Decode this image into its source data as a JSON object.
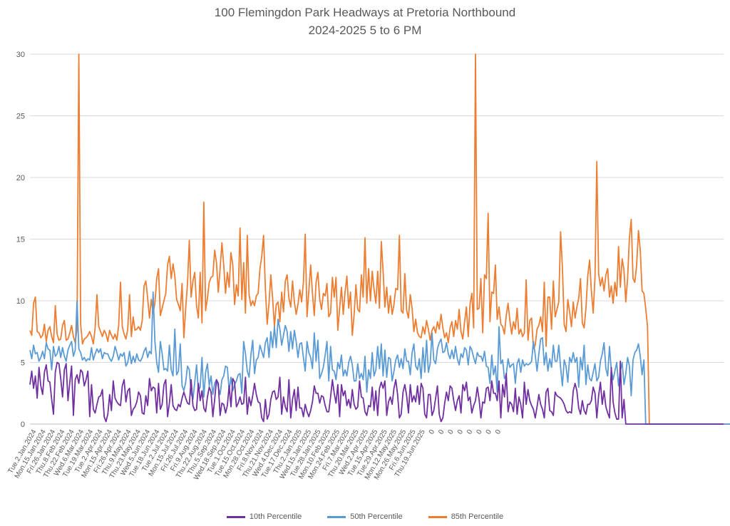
{
  "chart_data": {
    "type": "line",
    "title": "100 Flemingdon Park Headways at Pretoria Northbound",
    "subtitle": "2024-2025 5 to 6 PM",
    "xlabel": "",
    "ylabel": "",
    "ylim": [
      0,
      30
    ],
    "yticks": [
      0,
      5,
      10,
      15,
      20,
      25,
      30
    ],
    "grid": true,
    "legend_position": "bottom",
    "x_tick_labels": [
      "Tue.2.Jan.2024",
      "Mon.15.Jan.2024",
      "Fri.26.Jan.2024",
      "Thu.8.Feb.2024",
      "Thu.22.Feb.2024",
      "Wed.6.Mar.2024",
      "Tue.19.Mar.2024",
      "Tue.2.Apr.2024",
      "Mon.15.Apr.2024",
      "Fri.26.Apr.2024",
      "Thu.9.May.2024",
      "Thu.23.May.2024",
      "Wed.5.Jun.2024",
      "Tue.18.Jun.2024",
      "Tue.2.Jul.2024",
      "Mon.15.Jul.2024",
      "Fri.26.Jul.2024",
      "Fri.9.Aug.2024",
      "Thu.22.Aug.2024",
      "Thu.5.Sep.2024",
      "Wed.18.Sep.2024",
      "Tue.1.Oct.2024",
      "Tue.15.Oct.2024",
      "Mon.28.Oct.2024",
      "Fri.8.Nov.2024",
      "Thu.21.Nov.2024",
      "Wed.4.Dec.2024",
      "Tue.17.Dec.2024",
      "Thu.2.Jan.2025",
      "Wed.15.Jan.2025",
      "Tue.28.Jan.2025",
      "Mon.10.Feb.2025",
      "Mon.24.Feb.2025",
      "Fri.7.Mar.2025",
      "Thu.20.Mar.2025",
      "Wed.2.Apr.2025",
      "Tue.15.Apr.2025",
      "Tue.29.Apr.2025",
      "Mon.12.May.2025",
      "Mon.26.May.2025",
      "Fri.6.Jun.2025",
      "Thu.19.Jun.2025",
      "0",
      "0",
      "0",
      "0",
      "0",
      "0",
      "0",
      "0"
    ],
    "series": [
      {
        "name": "10th Percentile",
        "color": "#7030a0",
        "values": [
          3.2,
          4.3,
          2.9,
          3.9,
          2.1,
          4.6,
          3.1,
          2.4,
          4.2,
          4.8,
          3.5,
          3.4,
          2.0,
          0.8,
          4.2,
          5.0,
          4.9,
          3.7,
          2.2,
          4.4,
          4.9,
          1.9,
          3.4,
          4.7,
          0.7,
          3.6,
          4.0,
          3.3,
          4.4,
          4.2,
          3.1,
          3.6,
          4.3,
          0.6,
          3.2,
          1.2,
          0.9,
          1.6,
          2.2,
          2.3,
          2.8,
          0.6,
          0.2,
          0.8,
          2.4,
          1.1,
          3.5,
          2.1,
          1.8,
          1.6,
          1.5,
          3.1,
          3.6,
          1.8,
          2.7,
          2.9,
          0.7,
          1.2,
          1.4,
          1.8,
          2.6,
          2.3,
          0.9,
          0.8,
          2.3,
          1.5,
          3.7,
          2.7,
          3.0,
          2.9,
          0.9,
          3.3,
          1.2,
          1.6,
          3.2,
          3.6,
          0.6,
          1.7,
          3.2,
          1.5,
          1.2,
          1.1,
          1.6,
          1.4,
          2.1,
          2.6,
          2.1,
          1.7,
          1.6,
          3.6,
          1.5,
          1.1,
          1.2,
          3.3,
          1.9,
          2.7,
          1.3,
          1.0,
          2.2,
          3.0,
          2.6,
          0.6,
          2.0,
          3.6,
          3.3,
          0.7,
          1.7,
          1.6,
          0.9,
          1.5,
          3.1,
          1.4,
          3.7,
          3.4,
          1.4,
          1.7,
          2.2,
          1.6,
          1.7,
          3.8,
          0.8,
          2.2,
          1.5,
          2.3,
          3.3,
          2.4,
          1.8,
          1.7,
          0.5,
          0.2,
          2.0,
          0.4,
          0.8,
          2.0,
          2.6,
          2.7,
          2.0,
          2.2,
          3.8,
          0.8,
          2.2,
          1.4,
          1.0,
          3.6,
          0.5,
          2.0,
          2.8,
          1.1,
          3.0,
          1.3,
          1.3,
          0.6,
          1.6,
          1.0,
          0.6,
          1.1,
          1.8,
          3.1,
          2.5,
          2.5,
          1.7,
          2.3,
          2.2,
          1.5,
          1.0,
          1.0,
          2.2,
          3.6,
          2.5,
          1.7,
          3.2,
          0.6,
          3.2,
          2.3,
          2.7,
          1.5,
          2.0,
          1.3,
          2.8,
          1.6,
          1.2,
          1.4,
          3.5,
          2.2,
          2.1,
          1.0,
          0.7,
          1.5,
          1.4,
          3.0,
          1.1,
          2.7,
          0.7,
          2.9,
          3.4,
          2.9,
          3.5,
          0.7,
          1.8,
          2.2,
          1.6,
          2.9,
          3.6,
          2.4,
          0.5,
          0.8,
          2.6,
          3.2,
          2.3,
          0.9,
          3.2,
          1.8,
          2.3,
          1.8,
          3.1,
          1.6,
          3.3,
          2.9,
          0.8,
          0.5,
          2.4,
          2.4,
          0.7,
          1.1,
          2.1,
          3.1,
          0.8,
          0.2,
          0.5,
          1.7,
          2.6,
          1.9,
          3.1,
          2.9,
          1.9,
          1.1,
          1.9,
          2.3,
          0.9,
          3.2,
          2.7,
          3.4,
          1.9,
          2.2,
          0.9,
          1.5,
          1.9,
          3.0,
          2.0,
          0.5,
          1.8,
          1.7,
          2.9,
          3.0,
          1.9,
          3.5,
          2.5,
          2.5,
          1.9,
          3.5,
          0.5,
          3.2,
          2.2,
          4.1,
          1.0,
          1.8,
          1.6,
          1.0,
          2.9,
          0.8,
          2.2,
          1.6,
          0.5,
          3.4,
          1.6,
          2.8,
          1.9,
          1.5,
          1.2,
          0.5,
          1.4,
          2.4,
          1.6,
          1.2,
          0.5,
          2.6,
          2.9,
          1.1,
          1.0,
          0.7,
          2.6,
          2.3,
          2.2,
          2.1,
          1.9,
          1.6,
          1.1,
          0.9,
          1.0,
          0.9,
          2.7,
          3.3,
          2.7,
          1.3,
          0.8,
          1.9,
          1.1,
          0.8,
          1.6,
          1.6,
          1.9,
          3.0,
          2.5,
          0.5,
          2.3,
          3.4,
          1.6,
          2.7,
          1.4,
          0.9,
          0.5,
          4.6,
          1.8,
          0.9,
          0.4,
          0.4,
          5.1,
          0.5,
          2.0,
          0,
          0,
          0,
          0,
          0,
          0,
          0,
          0,
          0,
          0,
          0,
          0,
          0,
          0,
          0,
          0,
          0,
          0,
          0,
          0,
          0,
          0,
          0,
          0,
          0,
          0,
          0,
          0,
          0,
          0,
          0,
          0,
          0,
          0,
          0,
          0,
          0,
          0,
          0,
          0,
          0,
          0,
          0,
          0,
          0,
          0,
          0,
          0,
          0,
          0,
          0,
          0,
          0,
          0,
          0
        ]
      },
      {
        "name": "50th Percentile",
        "color": "#5b9bd5",
        "values": [
          6.0,
          5.3,
          6.4,
          5.7,
          5.8,
          5.1,
          5.4,
          5.9,
          5.3,
          6.6,
          6.1,
          6.0,
          4.4,
          6.3,
          5.5,
          5.7,
          6.3,
          5.4,
          6.2,
          5.5,
          5.1,
          6.0,
          6.4,
          6.7,
          5.5,
          6.0,
          10.0,
          6.1,
          5.8,
          5.2,
          5.4,
          5.1,
          5.3,
          5.2,
          6.2,
          5.2,
          5.7,
          6.1,
          5.8,
          6.1,
          5.3,
          5.8,
          5.7,
          5.7,
          5.3,
          5.1,
          5.5,
          6.3,
          5.8,
          5.2,
          5.7,
          5.5,
          5.8,
          4.7,
          5.0,
          5.9,
          4.9,
          5.5,
          5.0,
          5.7,
          5.2,
          5.1,
          5.4,
          5.9,
          6.2,
          5.4,
          5.9,
          5.7,
          10.7,
          6.7,
          5.0,
          4.2,
          6.7,
          5.7,
          4.4,
          4.5,
          4.3,
          6.4,
          4.4,
          3.9,
          7.7,
          4.0,
          4.3,
          6.5,
          3.1,
          2.7,
          3.4,
          4.7,
          4.4,
          2.5,
          2.0,
          3.4,
          4.8,
          2.7,
          3.0,
          5.4,
          2.2,
          4.2,
          4.9,
          3.1,
          3.9,
          2.4,
          3.3,
          3.6,
          3.0,
          2.4,
          3.6,
          3.9,
          4.7,
          4.6,
          2.7,
          3.8,
          2.7,
          3.2,
          3.5,
          4.0,
          4.1,
          2.5,
          6.7,
          5.7,
          4.3,
          3.8,
          5.6,
          6.8,
          4.1,
          5.2,
          5.4,
          6.4,
          5.9,
          5.4,
          6.6,
          7.0,
          5.4,
          7.5,
          6.2,
          7.9,
          6.2,
          8.5,
          7.7,
          6.4,
          7.2,
          8.0,
          7.5,
          5.9,
          7.5,
          6.1,
          7.6,
          6.7,
          5.4,
          6.5,
          6.6,
          5.4,
          4.3,
          6.7,
          5.8,
          5.4,
          4.5,
          7.4,
          5.1,
          6.8,
          3.7,
          4.1,
          4.6,
          5.6,
          6.7,
          3.5,
          6.3,
          4.4,
          4.3,
          3.6,
          5.0,
          4.5,
          5.6,
          3.9,
          4.4,
          3.9,
          5.0,
          5.5,
          4.8,
          3.5,
          3.5,
          4.9,
          3.7,
          4.1,
          3.6,
          5.5,
          2.6,
          4.4,
          3.7,
          5.8,
          3.9,
          4.4,
          6.3,
          4.5,
          6.5,
          3.9,
          6.0,
          3.8,
          5.4,
          5.3,
          3.5,
          4.3,
          5.2,
          5.6,
          4.6,
          5.3,
          4.5,
          6.1,
          5.1,
          5.1,
          4.0,
          5.8,
          6.5,
          4.7,
          4.4,
          5.3,
          3.7,
          6.2,
          4.2,
          6.8,
          4.2,
          4.9,
          7.4,
          5.2,
          4.9,
          6.1,
          6.6,
          6.9,
          5.8,
          5.9,
          6.6,
          5.7,
          5.3,
          6.0,
          5.3,
          6.3,
          5.3,
          4.8,
          5.7,
          5.4,
          6.2,
          6.0,
          4.8,
          6.3,
          6.0,
          5.4,
          4.9,
          5.8,
          5.5,
          5.5,
          5.1,
          5.9,
          4.7,
          4.6,
          3.3,
          5.6,
          4.0,
          4.7,
          2.6,
          7.9,
          4.9,
          5.2,
          3.7,
          4.0,
          5.3,
          4.6,
          4.8,
          4.9,
          3.3,
          4.9,
          5.3,
          4.2,
          5.2,
          4.7,
          4.9,
          4.8,
          4.9,
          5.1,
          6.7,
          5.6,
          4.3,
          5.7,
          6.9,
          7.0,
          4.8,
          5.8,
          4.3,
          5.3,
          4.6,
          6.4,
          5.1,
          5.1,
          6.4,
          4.6,
          3.1,
          5.2,
          4.7,
          3.4,
          5.4,
          5.0,
          5.8,
          5.0,
          5.4,
          3.0,
          5.4,
          4.4,
          6.4,
          3.2,
          4.8,
          3.7,
          3.5,
          4.2,
          4.9,
          3.5,
          3.8,
          5.1,
          5.7,
          6.6,
          4.5,
          3.9,
          6.3,
          4.4,
          3.6,
          4.3,
          5.0,
          3.1,
          4.3,
          5.0,
          3.2,
          4.1,
          5.4,
          4.7,
          2.3,
          5.2,
          5.8,
          6.0,
          6.5,
          5.5,
          4.0,
          5.2,
          0,
          0,
          0,
          0,
          0,
          0,
          0,
          0,
          0,
          0,
          0,
          0,
          0,
          0,
          0,
          0,
          0,
          0,
          0,
          0,
          0,
          0,
          0,
          0,
          0,
          0,
          0,
          0,
          0,
          0,
          0,
          0,
          0,
          0,
          0,
          0,
          0,
          0,
          0,
          0,
          0,
          0,
          0,
          0,
          0,
          0,
          0,
          0,
          0,
          0,
          0,
          0,
          0,
          0,
          0,
          0
        ]
      },
      {
        "name": "85th Percentile",
        "color": "#ed7d31",
        "values": [
          7.6,
          7.2,
          9.8,
          10.3,
          7.5,
          7.4,
          7.0,
          7.2,
          8.1,
          6.7,
          7.6,
          7.9,
          7.1,
          6.6,
          9.6,
          7.3,
          6.8,
          6.9,
          8.0,
          8.4,
          6.8,
          6.9,
          7.4,
          8.0,
          7.1,
          6.6,
          7.7,
          30.0,
          8.1,
          6.5,
          6.9,
          7.0,
          7.2,
          7.5,
          7.1,
          6.5,
          7.8,
          10.5,
          7.9,
          7.5,
          7.1,
          7.6,
          7.3,
          6.7,
          7.6,
          7.2,
          6.9,
          7.3,
          6.8,
          8.0,
          11.5,
          7.9,
          7.3,
          6.9,
          7.7,
          10.5,
          7.1,
          8.7,
          7.6,
          7.7,
          7.9,
          7.6,
          8.4,
          11.2,
          11.6,
          10.2,
          8.6,
          10.1,
          9.0,
          9.8,
          11.8,
          12.6,
          8.8,
          9.4,
          10.0,
          10.6,
          12.9,
          13.6,
          11.8,
          13.0,
          12.0,
          10.1,
          9.7,
          9.2,
          11.4,
          7.0,
          9.4,
          11.4,
          14.9,
          10.3,
          11.6,
          12.3,
          9.6,
          8.6,
          12.3,
          8.2,
          18.0,
          9.2,
          10.2,
          11.5,
          11.9,
          12.0,
          14.1,
          13.1,
          10.7,
          12.6,
          14.7,
          12.9,
          10.6,
          12.3,
          11.1,
          13.9,
          12.9,
          9.7,
          11.3,
          10.4,
          15.9,
          10.1,
          13.1,
          9.0,
          15.3,
          10.5,
          9.6,
          10.0,
          9.6,
          10.4,
          10.6,
          12.6,
          13.6,
          15.3,
          11.0,
          8.1,
          9.8,
          12.1,
          10.2,
          7.9,
          9.7,
          9.9,
          8.3,
          10.7,
          9.1,
          11.6,
          12.1,
          10.2,
          9.5,
          11.6,
          9.9,
          8.9,
          9.7,
          10.9,
          9.9,
          11.5,
          15.4,
          8.7,
          10.8,
          12.9,
          10.6,
          8.8,
          11.5,
          12.3,
          10.1,
          9.3,
          10.6,
          10.4,
          11.4,
          8.7,
          9.0,
          11.9,
          10.3,
          11.9,
          7.6,
          9.4,
          11.1,
          8.9,
          10.7,
          12.0,
          9.4,
          10.7,
          7.2,
          8.9,
          11.3,
          9.3,
          9.1,
          12.1,
          10.3,
          15.1,
          9.8,
          12.6,
          10.0,
          12.4,
          10.9,
          9.8,
          12.4,
          9.4,
          14.8,
          12.4,
          9.5,
          11.1,
          9.0,
          10.4,
          8.9,
          9.7,
          11.0,
          10.9,
          15.3,
          9.2,
          9.0,
          12.2,
          9.2,
          8.6,
          10.5,
          9.4,
          7.5,
          8.5,
          7.4,
          7.1,
          7.0,
          7.9,
          7.3,
          8.4,
          7.7,
          6.8,
          7.6,
          7.9,
          7.4,
          8.3,
          7.7,
          8.9,
          7.8,
          7.0,
          7.4,
          6.6,
          7.8,
          8.3,
          7.1,
          8.4,
          7.7,
          9.3,
          7.5,
          6.9,
          8.3,
          9.5,
          7.1,
          9.7,
          10.6,
          7.8,
          30.0,
          9.3,
          9.4,
          11.8,
          7.4,
          12.1,
          11.8,
          17.1,
          8.3,
          10.7,
          10.6,
          12.9,
          8.5,
          9.5,
          8.1,
          7.9,
          7.3,
          8.8,
          9.8,
          8.4,
          7.3,
          8.3,
          7.7,
          9.4,
          7.3,
          7.7,
          7.1,
          7.4,
          11.7,
          6.8,
          8.4,
          8.6,
          6.1,
          6.4,
          7.7,
          8.0,
          8.7,
          7.5,
          11.5,
          6.3,
          10.3,
          10.3,
          7.7,
          11.6,
          8.7,
          9.3,
          9.9,
          15.6,
          12.7,
          8.1,
          7.5,
          10.1,
          9.1,
          7.9,
          9.9,
          8.6,
          9.5,
          10.2,
          11.8,
          8.2,
          7.8,
          9.4,
          12.0,
          13.3,
          10.8,
          9.0,
          11.9,
          21.3,
          12.2,
          11.2,
          11.9,
          10.8,
          12.1,
          12.6,
          10.3,
          11.2,
          9.8,
          11.5,
          10.4,
          14.4,
          11.1,
          13.4,
          12.5,
          9.9,
          11.8,
          15.1,
          16.6,
          11.8,
          11.5,
          12.9,
          15.7,
          14.1,
          10.8,
          10.6,
          9.4,
          7.9,
          0,
          0,
          0,
          0,
          0,
          0,
          0,
          0,
          0,
          0,
          0,
          0,
          0,
          0,
          0,
          0,
          0,
          0,
          0,
          0,
          0,
          0,
          0,
          0,
          0,
          0,
          0,
          0,
          0,
          0,
          0,
          0,
          0,
          0,
          0,
          0,
          0,
          0,
          0,
          0,
          0,
          0,
          0,
          0,
          0,
          0,
          0,
          0,
          0,
          0,
          0,
          0,
          0,
          0,
          0,
          0
        ]
      }
    ]
  }
}
